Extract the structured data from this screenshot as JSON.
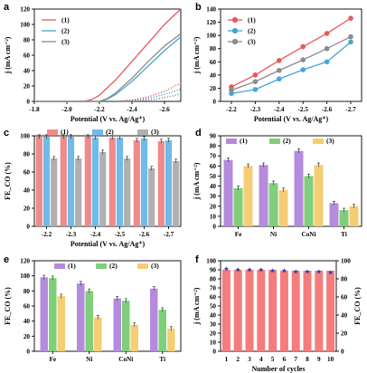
{
  "colors": {
    "red": "#e8585a",
    "blue": "#45a5d9",
    "grey": "#8c8c8c",
    "purple": "#b58bdc",
    "green": "#7fcf7a",
    "yellow": "#f5cd74",
    "bar_red": "#f08a8d",
    "bar_blue": "#6fbbe9",
    "bar_grey": "#b0b0b0",
    "fe_red": "#f47c7c",
    "jblue": "#2a3fb5"
  },
  "chart_data": [
    {
      "panel": "a",
      "type": "line",
      "xlabel": "Potential (V vs. Ag/Ag⁺)",
      "ylabel": "j (mA cm⁻²)",
      "xlim": [
        -1.8,
        -2.7
      ],
      "ylim": [
        0,
        120
      ],
      "xticks": [
        "-1.8",
        "-2.0",
        "-2.2",
        "-2.4",
        "-2.6"
      ],
      "yticks": [
        "0",
        "20",
        "40",
        "60",
        "80",
        "100",
        "120"
      ],
      "legend": [
        "(1)",
        "(2)",
        "(3)"
      ],
      "legend_position": "top-left",
      "series": [
        {
          "name": "(1)",
          "color": "red",
          "style": "solid",
          "x": [
            -1.8,
            -2.1,
            -2.15,
            -2.2,
            -2.3,
            -2.4,
            -2.5,
            -2.6,
            -2.7
          ],
          "y": [
            0,
            0,
            2,
            8,
            28,
            52,
            76,
            100,
            120
          ]
        },
        {
          "name": "(2)",
          "color": "blue",
          "style": "solid",
          "x": [
            -1.8,
            -2.2,
            -2.25,
            -2.3,
            -2.4,
            -2.5,
            -2.6,
            -2.7
          ],
          "y": [
            0,
            0,
            3,
            9,
            26,
            46,
            66,
            84
          ]
        },
        {
          "name": "(3)",
          "color": "grey",
          "style": "solid",
          "x": [
            -1.8,
            -2.2,
            -2.25,
            -2.3,
            -2.4,
            -2.5,
            -2.6,
            -2.7
          ],
          "y": [
            0,
            0,
            4,
            11,
            30,
            52,
            72,
            88
          ]
        },
        {
          "name": "",
          "color": "red",
          "style": "dotted",
          "x": [
            -1.8,
            -2.3,
            -2.4,
            -2.5,
            -2.6,
            -2.7
          ],
          "y": [
            0,
            0,
            2,
            6,
            13,
            24
          ]
        },
        {
          "name": "",
          "color": "blue",
          "style": "dotted",
          "x": [
            -1.8,
            -2.3,
            -2.4,
            -2.5,
            -2.6,
            -2.7
          ],
          "y": [
            0,
            0,
            1,
            4,
            9,
            16
          ]
        },
        {
          "name": "",
          "color": "grey",
          "style": "dotted",
          "x": [
            -1.8,
            -2.35,
            -2.45,
            -2.55,
            -2.65,
            -2.7
          ],
          "y": [
            0,
            0,
            1,
            3,
            7,
            10
          ]
        }
      ]
    },
    {
      "panel": "b",
      "type": "line",
      "xlabel": "Potential (V vs. Ag/Ag⁺)",
      "ylabel": "j (mA cm⁻²)",
      "categories": [
        "-2.2",
        "-2.3",
        "-2.4",
        "-2.5",
        "-2.6",
        "-2.7"
      ],
      "ylim": [
        0,
        140
      ],
      "yticks": [
        "0",
        "20",
        "40",
        "60",
        "80",
        "100",
        "120",
        "140"
      ],
      "legend": [
        "(1)",
        "(2)",
        "(3)"
      ],
      "legend_position": "top-left",
      "series": [
        {
          "name": "(1)",
          "color": "red",
          "values": [
            22,
            40,
            62,
            83,
            103,
            126
          ]
        },
        {
          "name": "(2)",
          "color": "blue",
          "values": [
            12,
            18,
            34,
            48,
            60,
            90
          ]
        },
        {
          "name": "(3)",
          "color": "grey",
          "values": [
            17,
            30,
            47,
            63,
            80,
            98
          ]
        }
      ]
    },
    {
      "panel": "c",
      "type": "bar",
      "xlabel": "Potential (V vs. Ag/Ag⁺)",
      "ylabel": "FE_CO (%)",
      "categories": [
        "-2.2",
        "-2.3",
        "-2.4",
        "-2.5",
        "-2.6",
        "-2.7"
      ],
      "ylim": [
        0,
        100
      ],
      "yticks": [
        "0",
        "20",
        "40",
        "60",
        "80",
        "100"
      ],
      "legend": [
        "(1)",
        "(2)",
        "(3)"
      ],
      "legend_position": "top",
      "series": [
        {
          "name": "(1)",
          "color": "bar_red",
          "values": [
            99,
            99,
            99,
            98,
            95,
            94
          ]
        },
        {
          "name": "(2)",
          "color": "bar_blue",
          "values": [
            99,
            99,
            98,
            98,
            97,
            95
          ]
        },
        {
          "name": "(3)",
          "color": "bar_grey",
          "values": [
            75,
            75,
            82,
            75,
            64,
            72
          ]
        }
      ]
    },
    {
      "panel": "d",
      "type": "bar",
      "ylabel": "j (mA cm⁻²)",
      "categories": [
        "Fe",
        "Ni",
        "CoNi",
        "Ti"
      ],
      "ylim": [
        0,
        90
      ],
      "yticks": [
        "0",
        "10",
        "20",
        "30",
        "40",
        "50",
        "60",
        "70",
        "80",
        "90"
      ],
      "legend": [
        "(1)",
        "(2)",
        "(3)"
      ],
      "legend_position": "top",
      "series": [
        {
          "name": "(1)",
          "color": "purple",
          "values": [
            66,
            61,
            75,
            23
          ]
        },
        {
          "name": "(2)",
          "color": "green",
          "values": [
            38,
            43,
            50,
            16
          ]
        },
        {
          "name": "(3)",
          "color": "yellow",
          "values": [
            60,
            36,
            61,
            20
          ]
        }
      ]
    },
    {
      "panel": "e",
      "type": "bar",
      "ylabel": "FE_CO (%)",
      "categories": [
        "Fe",
        "Ni",
        "CoNi",
        "Ti"
      ],
      "ylim": [
        0,
        120
      ],
      "yticks": [
        "0",
        "20",
        "40",
        "60",
        "80",
        "100",
        "120"
      ],
      "legend": [
        "(1)",
        "(2)",
        "(3)"
      ],
      "legend_position": "top",
      "series": [
        {
          "name": "(1)",
          "color": "purple",
          "values": [
            98,
            90,
            70,
            83
          ]
        },
        {
          "name": "(2)",
          "color": "green",
          "values": [
            97,
            80,
            67,
            55
          ]
        },
        {
          "name": "(3)",
          "color": "yellow",
          "values": [
            73,
            45,
            35,
            30
          ]
        }
      ]
    },
    {
      "panel": "f",
      "type": "bar",
      "xlabel": "Number of cycles",
      "ylabel": "j (mA cm⁻²)",
      "ylabel_right": "FE_CO (%)",
      "categories": [
        "1",
        "2",
        "3",
        "4",
        "5",
        "6",
        "7",
        "8",
        "9",
        "10"
      ],
      "ylim": [
        0,
        100
      ],
      "yticks": [
        "0",
        "10",
        "20",
        "30",
        "40",
        "50",
        "60",
        "70",
        "80",
        "90",
        "100"
      ],
      "ylim_right": [
        0,
        100
      ],
      "yticks_right": [
        "0",
        "20",
        "40",
        "60",
        "80",
        "100"
      ],
      "series": [
        {
          "name": "FE",
          "color": "fe_red",
          "axis": "right",
          "values": [
            90,
            90,
            90,
            90,
            90,
            89,
            89,
            89,
            89,
            89
          ]
        },
        {
          "name": "j",
          "color": "jblue",
          "axis": "left",
          "marker": "star",
          "values": [
            91,
            90,
            90,
            90,
            89,
            89,
            88,
            88,
            88,
            87
          ]
        }
      ]
    }
  ]
}
